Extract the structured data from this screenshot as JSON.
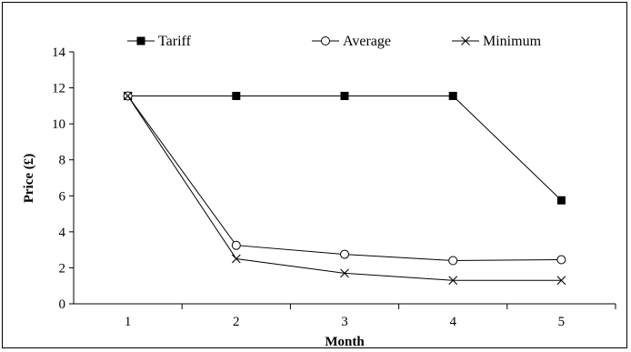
{
  "chart_data": {
    "type": "line",
    "title": "",
    "xlabel": "Month",
    "ylabel": "Price (£)",
    "x": [
      1,
      2,
      3,
      4,
      5
    ],
    "x_tick_labels": [
      "1",
      "2",
      "3",
      "4",
      "5"
    ],
    "ylim": [
      0,
      14
    ],
    "y_ticks": [
      0,
      2,
      4,
      6,
      8,
      10,
      12,
      14
    ],
    "grid": false,
    "legend_position": "top",
    "series": [
      {
        "name": "Tariff",
        "marker": "filled-square",
        "values": [
          11.55,
          11.55,
          11.55,
          11.55,
          5.75
        ]
      },
      {
        "name": "Average",
        "marker": "open-circle",
        "values": [
          11.55,
          3.25,
          2.75,
          2.4,
          2.45
        ]
      },
      {
        "name": "Minimum",
        "marker": "x",
        "values": [
          11.55,
          2.5,
          1.7,
          1.3,
          1.3
        ]
      }
    ],
    "colors": {
      "line": "#000000",
      "axis": "#000000",
      "background": "#ffffff"
    }
  }
}
